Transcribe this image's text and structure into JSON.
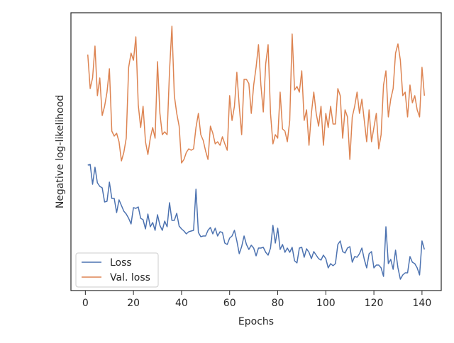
{
  "chart_data": {
    "type": "line",
    "xlabel": "Epochs",
    "ylabel": "Negative log-likelihood",
    "x": [
      1,
      2,
      3,
      4,
      5,
      6,
      7,
      8,
      9,
      10,
      11,
      12,
      13,
      14,
      15,
      16,
      17,
      18,
      19,
      20,
      21,
      22,
      23,
      24,
      25,
      26,
      27,
      28,
      29,
      30,
      31,
      32,
      33,
      34,
      35,
      36,
      37,
      38,
      39,
      40,
      41,
      42,
      43,
      44,
      45,
      46,
      47,
      48,
      49,
      50,
      51,
      52,
      53,
      54,
      55,
      56,
      57,
      58,
      59,
      60,
      61,
      62,
      63,
      64,
      65,
      66,
      67,
      68,
      69,
      70,
      71,
      72,
      73,
      74,
      75,
      76,
      77,
      78,
      79,
      80,
      81,
      82,
      83,
      84,
      85,
      86,
      87,
      88,
      89,
      90,
      91,
      92,
      93,
      94,
      95,
      96,
      97,
      98,
      99,
      100,
      101,
      102,
      103,
      104,
      105,
      106,
      107,
      108,
      109,
      110,
      111,
      112,
      113,
      114,
      115,
      116,
      117,
      118,
      119,
      120,
      121,
      122,
      123,
      124,
      125,
      126,
      127,
      128,
      129,
      130,
      131,
      132,
      133,
      134,
      135,
      136,
      137,
      138,
      139,
      140,
      141
    ],
    "series": [
      {
        "name": "Loss",
        "color": "#4c72b0",
        "values": [
          177,
          178,
          150,
          174,
          152,
          147,
          145,
          125,
          126,
          153,
          130,
          130,
          110,
          128,
          120,
          112,
          108,
          102,
          94,
          117,
          116,
          118,
          102,
          100,
          87,
          108,
          90,
          96,
          85,
          107,
          92,
          85,
          98,
          90,
          124,
          99,
          99,
          109,
          91,
          87,
          84,
          80,
          83,
          84,
          85,
          143,
          82,
          76,
          77,
          77,
          85,
          89,
          80,
          88,
          77,
          83,
          82,
          67,
          65,
          74,
          77,
          85,
          70,
          52,
          62,
          77,
          65,
          58,
          64,
          60,
          49,
          60,
          60,
          61,
          54,
          50,
          60,
          92,
          67,
          88,
          58,
          65,
          54,
          60,
          54,
          61,
          42,
          39,
          60,
          61,
          47,
          59,
          54,
          45,
          55,
          50,
          45,
          43,
          50,
          45,
          32,
          38,
          35,
          38,
          65,
          70,
          55,
          53,
          60,
          62,
          40,
          48,
          47,
          52,
          60,
          44,
          32,
          52,
          55,
          32,
          36,
          36,
          32,
          20,
          90,
          38,
          44,
          30,
          57,
          32,
          16,
          22,
          25,
          25,
          48,
          40,
          38,
          32,
          22,
          70,
          58
        ]
      },
      {
        "name": "Val. loss",
        "color": "#dd8452",
        "values": [
          333,
          285,
          300,
          345,
          275,
          300,
          247,
          260,
          280,
          313,
          225,
          218,
          222,
          210,
          183,
          195,
          215,
          315,
          335,
          325,
          358,
          262,
          230,
          260,
          210,
          192,
          215,
          230,
          215,
          323,
          250,
          220,
          224,
          220,
          310,
          373,
          275,
          250,
          232,
          180,
          185,
          195,
          200,
          198,
          200,
          230,
          250,
          220,
          212,
          197,
          185,
          232,
          222,
          207,
          210,
          205,
          217,
          207,
          198,
          275,
          240,
          260,
          308,
          260,
          220,
          298,
          298,
          292,
          250,
          290,
          315,
          347,
          290,
          252,
          320,
          347,
          250,
          207,
          220,
          215,
          280,
          228,
          225,
          210,
          240,
          362,
          283,
          288,
          280,
          310,
          240,
          255,
          205,
          250,
          280,
          250,
          232,
          260,
          205,
          250,
          230,
          260,
          235,
          235,
          285,
          275,
          215,
          255,
          245,
          185,
          245,
          260,
          280,
          250,
          270,
          240,
          210,
          255,
          210,
          230,
          250,
          200,
          220,
          290,
          310,
          245,
          270,
          285,
          335,
          348,
          325,
          275,
          280,
          245,
          290,
          265,
          275,
          255,
          245,
          315,
          275
        ]
      }
    ],
    "xlim": [
      -6,
      148
    ],
    "xticks": [
      0,
      20,
      40,
      60,
      80,
      100,
      120,
      140
    ],
    "ylim": [
      0,
      392
    ],
    "legend": "lower left"
  }
}
